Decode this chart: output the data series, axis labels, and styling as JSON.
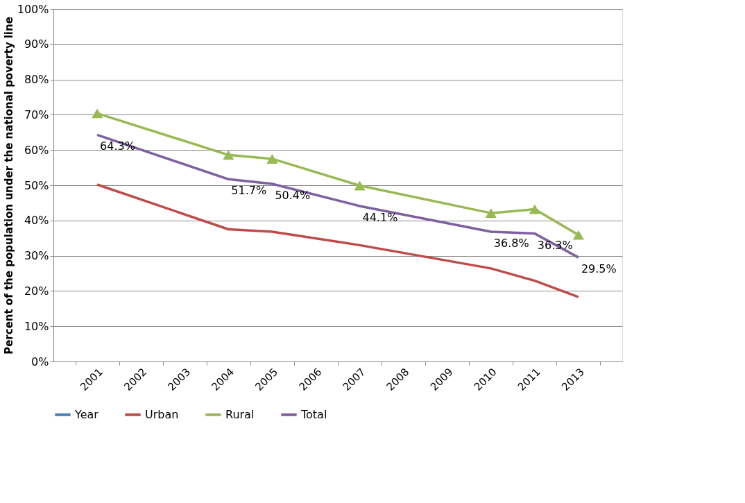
{
  "chart_data": {
    "type": "line",
    "ylabel": "Percent of the population under the national poverty line",
    "categories": [
      "2001",
      "2002",
      "2003",
      "2004",
      "2005",
      "2006",
      "2007",
      "2008",
      "2009",
      "2010",
      "2011",
      "2013"
    ],
    "series": [
      {
        "name": "Year",
        "color": "#4a7ebb",
        "values": [
          null,
          null,
          null,
          null,
          null,
          null,
          null,
          null,
          null,
          null,
          null,
          null
        ]
      },
      {
        "name": "Urban",
        "color": "#be4b48",
        "values": [
          50.2,
          null,
          null,
          37.5,
          36.8,
          null,
          33.0,
          null,
          null,
          26.4,
          22.9,
          18.3
        ]
      },
      {
        "name": "Rural",
        "color": "#98b954",
        "marker": "triangle",
        "values": [
          70.4,
          null,
          null,
          58.6,
          57.5,
          null,
          49.9,
          null,
          null,
          42.1,
          43.2,
          35.9
        ]
      },
      {
        "name": "Total",
        "color": "#7d60a0",
        "values": [
          64.3,
          null,
          null,
          51.7,
          50.4,
          null,
          44.1,
          null,
          null,
          36.8,
          36.3,
          29.5
        ],
        "value_labels": [
          "64.3%",
          null,
          null,
          "51.7%",
          "50.4%",
          null,
          "44.1%",
          null,
          null,
          "36.8%",
          "36.3%",
          "29.5%"
        ]
      }
    ],
    "ylim": [
      0,
      100
    ],
    "yticks": [
      {
        "value": 0,
        "label": "0%"
      },
      {
        "value": 10,
        "label": "10%"
      },
      {
        "value": 20,
        "label": "20%"
      },
      {
        "value": 30,
        "label": "30%"
      },
      {
        "value": 40,
        "label": "40%"
      },
      {
        "value": 50,
        "label": "50%"
      },
      {
        "value": 60,
        "label": "60%"
      },
      {
        "value": 70,
        "label": "70%"
      },
      {
        "value": 80,
        "label": "80%"
      },
      {
        "value": 90,
        "label": "90%"
      },
      {
        "value": 100,
        "label": "100%"
      }
    ],
    "grid": "y",
    "legend": "bottom",
    "line_style": "solid"
  }
}
